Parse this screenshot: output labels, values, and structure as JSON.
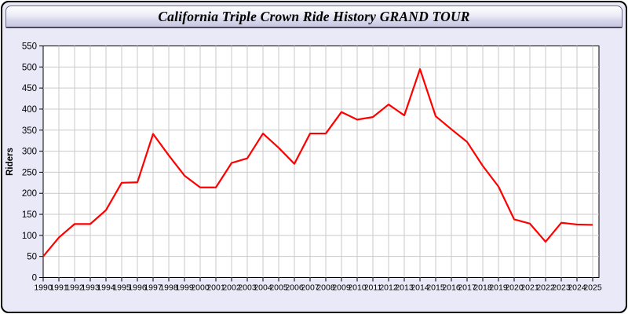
{
  "window": {
    "title": "California Triple Crown Ride History GRAND TOUR",
    "background_color": "#e9e9f7",
    "border_color": "#000000",
    "titlebar_gradient_top": "#fefeff",
    "titlebar_gradient_bottom": "#c7c7e2"
  },
  "chart_data": {
    "type": "line",
    "title": "California Triple Crown Ride History GRAND TOUR",
    "xlabel": "",
    "ylabel": "Riders",
    "x": [
      1990,
      1991,
      1992,
      1993,
      1994,
      1995,
      1996,
      1997,
      1998,
      1999,
      2000,
      2001,
      2002,
      2003,
      2004,
      2005,
      2006,
      2007,
      2008,
      2009,
      2010,
      2011,
      2012,
      2013,
      2014,
      2015,
      2016,
      2017,
      2018,
      2019,
      2020,
      2021,
      2022,
      2023,
      2024,
      2025
    ],
    "series": [
      {
        "name": "Riders",
        "color": "#ff0000",
        "values": [
          50,
          95,
          127,
          127,
          160,
          225,
          226,
          341,
          290,
          242,
          214,
          214,
          272,
          283,
          342,
          308,
          270,
          342,
          342,
          393,
          375,
          381,
          411,
          385,
          495,
          383,
          352,
          322,
          265,
          216,
          138,
          128,
          85,
          130,
          126,
          125
        ]
      }
    ],
    "ylim": [
      0,
      550
    ],
    "y_tick_step": 50,
    "grid": true,
    "legend_position": "none",
    "plot_bg": "#ffffff",
    "grid_color": "#c9c9c9",
    "axis_color": "#000000",
    "tick_label_color": "#000000"
  }
}
